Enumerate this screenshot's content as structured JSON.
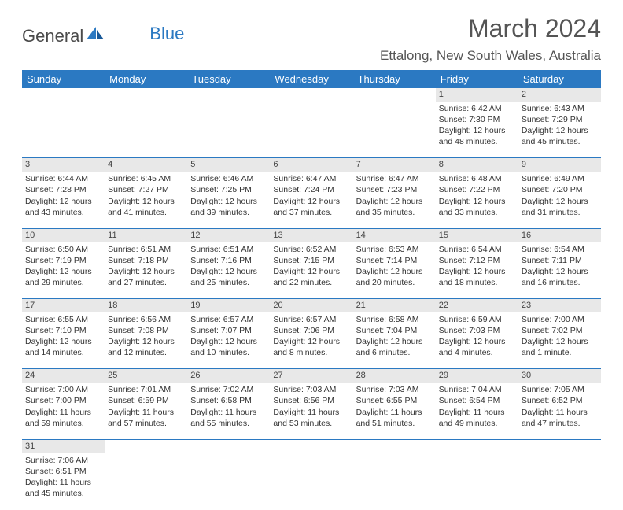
{
  "logo": {
    "text1": "General",
    "text2": "Blue"
  },
  "header": {
    "title": "March 2024",
    "location": "Ettalong, New South Wales, Australia"
  },
  "colors": {
    "accent": "#2b79c2",
    "grayRow": "#e8e8e8",
    "text": "#333333",
    "headerText": "#555555"
  },
  "weekdays": [
    "Sunday",
    "Monday",
    "Tuesday",
    "Wednesday",
    "Thursday",
    "Friday",
    "Saturday"
  ],
  "weeks": [
    {
      "daynums": [
        "",
        "",
        "",
        "",
        "",
        "1",
        "2"
      ],
      "cells": [
        {
          "empty": true,
          "sunrise": "",
          "sunset": "",
          "daylight1": "",
          "daylight2": ""
        },
        {
          "empty": true,
          "sunrise": "",
          "sunset": "",
          "daylight1": "",
          "daylight2": ""
        },
        {
          "empty": true,
          "sunrise": "",
          "sunset": "",
          "daylight1": "",
          "daylight2": ""
        },
        {
          "empty": true,
          "sunrise": "",
          "sunset": "",
          "daylight1": "",
          "daylight2": ""
        },
        {
          "empty": true,
          "sunrise": "",
          "sunset": "",
          "daylight1": "",
          "daylight2": ""
        },
        {
          "empty": false,
          "sunrise": "Sunrise: 6:42 AM",
          "sunset": "Sunset: 7:30 PM",
          "daylight1": "Daylight: 12 hours",
          "daylight2": "and 48 minutes."
        },
        {
          "empty": false,
          "sunrise": "Sunrise: 6:43 AM",
          "sunset": "Sunset: 7:29 PM",
          "daylight1": "Daylight: 12 hours",
          "daylight2": "and 45 minutes."
        }
      ]
    },
    {
      "daynums": [
        "3",
        "4",
        "5",
        "6",
        "7",
        "8",
        "9"
      ],
      "cells": [
        {
          "empty": false,
          "sunrise": "Sunrise: 6:44 AM",
          "sunset": "Sunset: 7:28 PM",
          "daylight1": "Daylight: 12 hours",
          "daylight2": "and 43 minutes."
        },
        {
          "empty": false,
          "sunrise": "Sunrise: 6:45 AM",
          "sunset": "Sunset: 7:27 PM",
          "daylight1": "Daylight: 12 hours",
          "daylight2": "and 41 minutes."
        },
        {
          "empty": false,
          "sunrise": "Sunrise: 6:46 AM",
          "sunset": "Sunset: 7:25 PM",
          "daylight1": "Daylight: 12 hours",
          "daylight2": "and 39 minutes."
        },
        {
          "empty": false,
          "sunrise": "Sunrise: 6:47 AM",
          "sunset": "Sunset: 7:24 PM",
          "daylight1": "Daylight: 12 hours",
          "daylight2": "and 37 minutes."
        },
        {
          "empty": false,
          "sunrise": "Sunrise: 6:47 AM",
          "sunset": "Sunset: 7:23 PM",
          "daylight1": "Daylight: 12 hours",
          "daylight2": "and 35 minutes."
        },
        {
          "empty": false,
          "sunrise": "Sunrise: 6:48 AM",
          "sunset": "Sunset: 7:22 PM",
          "daylight1": "Daylight: 12 hours",
          "daylight2": "and 33 minutes."
        },
        {
          "empty": false,
          "sunrise": "Sunrise: 6:49 AM",
          "sunset": "Sunset: 7:20 PM",
          "daylight1": "Daylight: 12 hours",
          "daylight2": "and 31 minutes."
        }
      ]
    },
    {
      "daynums": [
        "10",
        "11",
        "12",
        "13",
        "14",
        "15",
        "16"
      ],
      "cells": [
        {
          "empty": false,
          "sunrise": "Sunrise: 6:50 AM",
          "sunset": "Sunset: 7:19 PM",
          "daylight1": "Daylight: 12 hours",
          "daylight2": "and 29 minutes."
        },
        {
          "empty": false,
          "sunrise": "Sunrise: 6:51 AM",
          "sunset": "Sunset: 7:18 PM",
          "daylight1": "Daylight: 12 hours",
          "daylight2": "and 27 minutes."
        },
        {
          "empty": false,
          "sunrise": "Sunrise: 6:51 AM",
          "sunset": "Sunset: 7:16 PM",
          "daylight1": "Daylight: 12 hours",
          "daylight2": "and 25 minutes."
        },
        {
          "empty": false,
          "sunrise": "Sunrise: 6:52 AM",
          "sunset": "Sunset: 7:15 PM",
          "daylight1": "Daylight: 12 hours",
          "daylight2": "and 22 minutes."
        },
        {
          "empty": false,
          "sunrise": "Sunrise: 6:53 AM",
          "sunset": "Sunset: 7:14 PM",
          "daylight1": "Daylight: 12 hours",
          "daylight2": "and 20 minutes."
        },
        {
          "empty": false,
          "sunrise": "Sunrise: 6:54 AM",
          "sunset": "Sunset: 7:12 PM",
          "daylight1": "Daylight: 12 hours",
          "daylight2": "and 18 minutes."
        },
        {
          "empty": false,
          "sunrise": "Sunrise: 6:54 AM",
          "sunset": "Sunset: 7:11 PM",
          "daylight1": "Daylight: 12 hours",
          "daylight2": "and 16 minutes."
        }
      ]
    },
    {
      "daynums": [
        "17",
        "18",
        "19",
        "20",
        "21",
        "22",
        "23"
      ],
      "cells": [
        {
          "empty": false,
          "sunrise": "Sunrise: 6:55 AM",
          "sunset": "Sunset: 7:10 PM",
          "daylight1": "Daylight: 12 hours",
          "daylight2": "and 14 minutes."
        },
        {
          "empty": false,
          "sunrise": "Sunrise: 6:56 AM",
          "sunset": "Sunset: 7:08 PM",
          "daylight1": "Daylight: 12 hours",
          "daylight2": "and 12 minutes."
        },
        {
          "empty": false,
          "sunrise": "Sunrise: 6:57 AM",
          "sunset": "Sunset: 7:07 PM",
          "daylight1": "Daylight: 12 hours",
          "daylight2": "and 10 minutes."
        },
        {
          "empty": false,
          "sunrise": "Sunrise: 6:57 AM",
          "sunset": "Sunset: 7:06 PM",
          "daylight1": "Daylight: 12 hours",
          "daylight2": "and 8 minutes."
        },
        {
          "empty": false,
          "sunrise": "Sunrise: 6:58 AM",
          "sunset": "Sunset: 7:04 PM",
          "daylight1": "Daylight: 12 hours",
          "daylight2": "and 6 minutes."
        },
        {
          "empty": false,
          "sunrise": "Sunrise: 6:59 AM",
          "sunset": "Sunset: 7:03 PM",
          "daylight1": "Daylight: 12 hours",
          "daylight2": "and 4 minutes."
        },
        {
          "empty": false,
          "sunrise": "Sunrise: 7:00 AM",
          "sunset": "Sunset: 7:02 PM",
          "daylight1": "Daylight: 12 hours",
          "daylight2": "and 1 minute."
        }
      ]
    },
    {
      "daynums": [
        "24",
        "25",
        "26",
        "27",
        "28",
        "29",
        "30"
      ],
      "cells": [
        {
          "empty": false,
          "sunrise": "Sunrise: 7:00 AM",
          "sunset": "Sunset: 7:00 PM",
          "daylight1": "Daylight: 11 hours",
          "daylight2": "and 59 minutes."
        },
        {
          "empty": false,
          "sunrise": "Sunrise: 7:01 AM",
          "sunset": "Sunset: 6:59 PM",
          "daylight1": "Daylight: 11 hours",
          "daylight2": "and 57 minutes."
        },
        {
          "empty": false,
          "sunrise": "Sunrise: 7:02 AM",
          "sunset": "Sunset: 6:58 PM",
          "daylight1": "Daylight: 11 hours",
          "daylight2": "and 55 minutes."
        },
        {
          "empty": false,
          "sunrise": "Sunrise: 7:03 AM",
          "sunset": "Sunset: 6:56 PM",
          "daylight1": "Daylight: 11 hours",
          "daylight2": "and 53 minutes."
        },
        {
          "empty": false,
          "sunrise": "Sunrise: 7:03 AM",
          "sunset": "Sunset: 6:55 PM",
          "daylight1": "Daylight: 11 hours",
          "daylight2": "and 51 minutes."
        },
        {
          "empty": false,
          "sunrise": "Sunrise: 7:04 AM",
          "sunset": "Sunset: 6:54 PM",
          "daylight1": "Daylight: 11 hours",
          "daylight2": "and 49 minutes."
        },
        {
          "empty": false,
          "sunrise": "Sunrise: 7:05 AM",
          "sunset": "Sunset: 6:52 PM",
          "daylight1": "Daylight: 11 hours",
          "daylight2": "and 47 minutes."
        }
      ]
    },
    {
      "daynums": [
        "31",
        "",
        "",
        "",
        "",
        "",
        ""
      ],
      "cells": [
        {
          "empty": false,
          "sunrise": "Sunrise: 7:06 AM",
          "sunset": "Sunset: 6:51 PM",
          "daylight1": "Daylight: 11 hours",
          "daylight2": "and 45 minutes."
        },
        {
          "empty": true,
          "sunrise": "",
          "sunset": "",
          "daylight1": "",
          "daylight2": ""
        },
        {
          "empty": true,
          "sunrise": "",
          "sunset": "",
          "daylight1": "",
          "daylight2": ""
        },
        {
          "empty": true,
          "sunrise": "",
          "sunset": "",
          "daylight1": "",
          "daylight2": ""
        },
        {
          "empty": true,
          "sunrise": "",
          "sunset": "",
          "daylight1": "",
          "daylight2": ""
        },
        {
          "empty": true,
          "sunrise": "",
          "sunset": "",
          "daylight1": "",
          "daylight2": ""
        },
        {
          "empty": true,
          "sunrise": "",
          "sunset": "",
          "daylight1": "",
          "daylight2": ""
        }
      ]
    }
  ]
}
